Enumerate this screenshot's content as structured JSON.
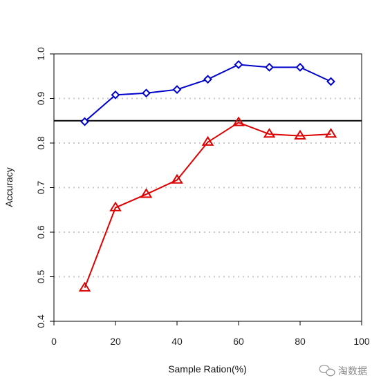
{
  "chart_data": {
    "type": "line",
    "title": "",
    "xlabel": "Sample Ration(%)",
    "ylabel": "Accuracy",
    "xlim": [
      0,
      100
    ],
    "ylim": [
      0.4,
      1.0
    ],
    "xticks": [
      0,
      20,
      40,
      60,
      80,
      100
    ],
    "yticks": [
      0.4,
      0.5,
      0.6,
      0.7,
      0.8,
      0.9,
      1.0
    ],
    "grid": "horizontal dotted",
    "x": [
      10,
      20,
      30,
      40,
      50,
      60,
      70,
      80,
      90
    ],
    "series": [
      {
        "color": "#0000cc",
        "marker": "diamond",
        "values": [
          0.848,
          0.908,
          0.912,
          0.92,
          0.943,
          0.976,
          0.97,
          0.97,
          0.938
        ]
      },
      {
        "color": "#dd0000",
        "marker": "triangle",
        "values": [
          0.475,
          0.655,
          0.685,
          0.717,
          0.802,
          0.846,
          0.82,
          0.816,
          0.82
        ]
      }
    ],
    "reference_line": {
      "y": 0.85,
      "color": "#000000"
    }
  },
  "watermark": {
    "icon": "wechat-icon",
    "text": "淘数据"
  }
}
